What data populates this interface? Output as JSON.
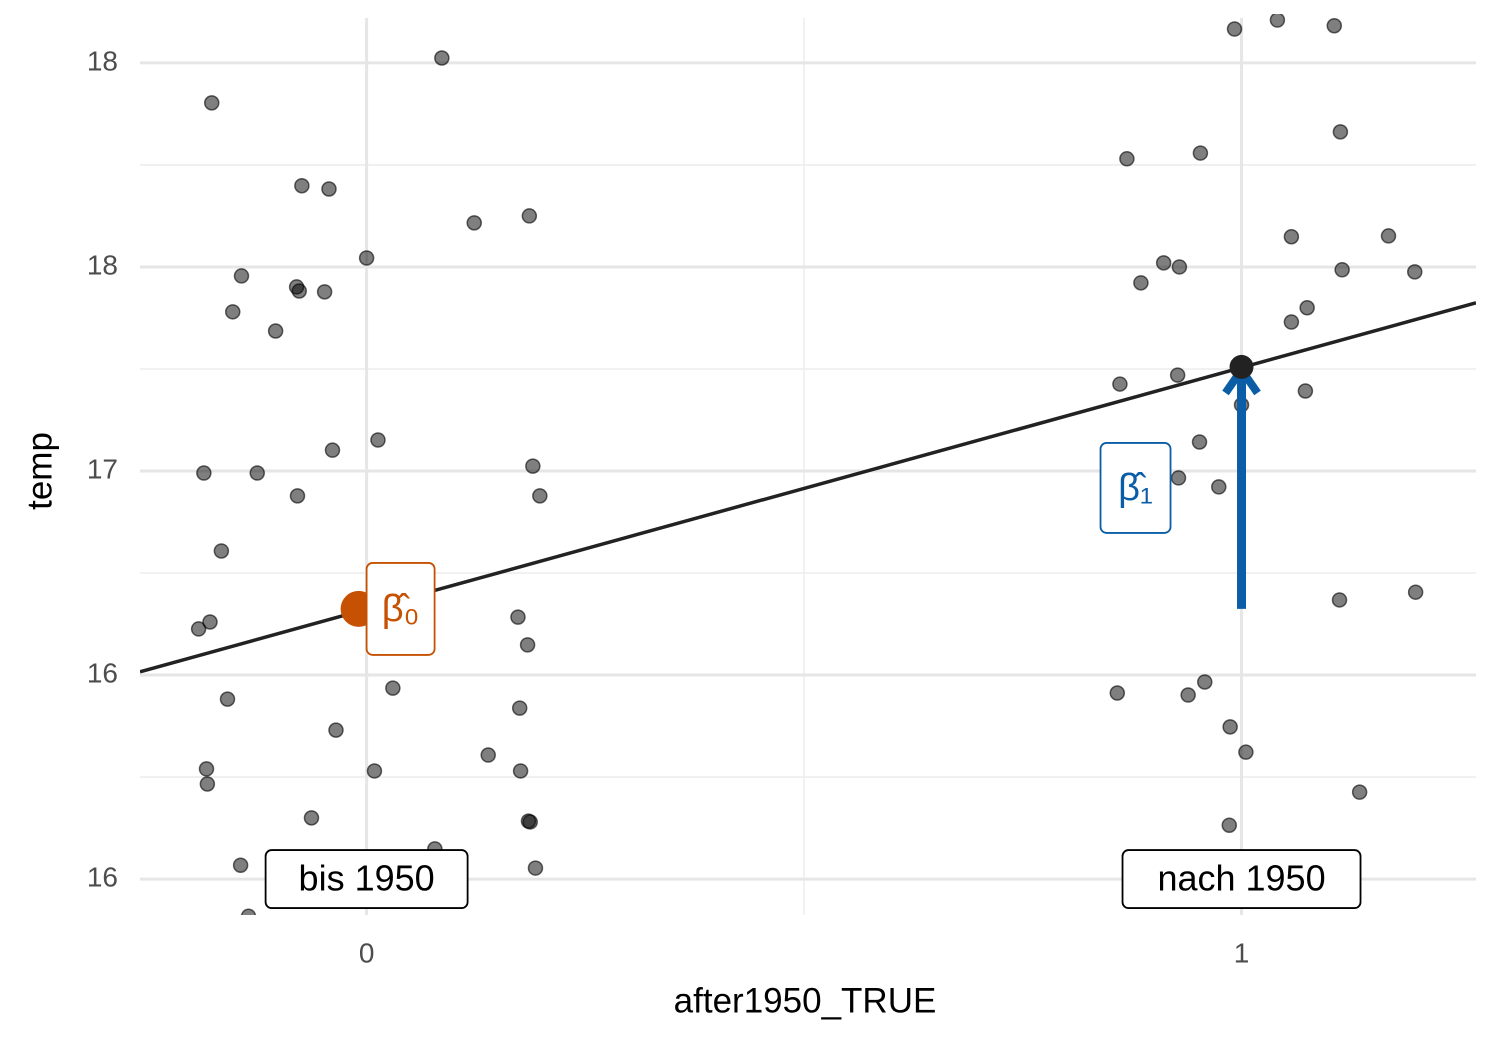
{
  "chart_data": {
    "type": "scatter",
    "x_label": "after1950_TRUE",
    "y_label": "temp",
    "xlim": [
      -0.259,
      1.268
    ],
    "ylim": [
      15.912,
      18.11
    ],
    "xticks": [
      0,
      1
    ],
    "yticks": [
      {
        "value": 18,
        "label": "18"
      },
      {
        "value": 17.5,
        "label": "18"
      },
      {
        "value": 17,
        "label": "17"
      },
      {
        "value": 16.5,
        "label": "16"
      },
      {
        "value": 16,
        "label": "16"
      }
    ],
    "grid": true,
    "point_color": "#000000",
    "x": [
      0.086,
      -0.177,
      -0.074,
      -0.043,
      0.123,
      0.186,
      0.0,
      -0.143,
      -0.08,
      -0.077,
      -0.048,
      -0.153,
      -0.104,
      0.013,
      -0.039,
      -0.186,
      -0.125,
      0.19,
      0.198,
      -0.079,
      -0.166,
      -0.179,
      -0.192,
      0.173,
      0.184,
      0.03,
      -0.159,
      -0.035,
      0.175,
      0.139,
      -0.183,
      0.009,
      0.176,
      -0.182,
      -0.063,
      0.185,
      0.187,
      0.078,
      -0.144,
      0.193,
      -0.135,
      0.992,
      1.041,
      1.106,
      1.113,
      0.869,
      0.953,
      1.057,
      1.168,
      0.911,
      0.929,
      1.115,
      1.198,
      0.885,
      1.075,
      1.057,
      0.861,
      0.927,
      1.073,
      1.0,
      0.952,
      0.928,
      0.974,
      1.112,
      1.199,
      0.858,
      0.939,
      0.958,
      0.987,
      1.005,
      1.135,
      0.986,
      1.147
    ],
    "values": [
      18.012,
      17.902,
      17.699,
      17.691,
      17.608,
      17.625,
      17.522,
      17.478,
      17.451,
      17.441,
      17.439,
      17.39,
      17.343,
      17.076,
      17.051,
      16.995,
      16.995,
      17.012,
      16.939,
      16.939,
      16.804,
      16.63,
      16.613,
      16.642,
      16.574,
      16.468,
      16.441,
      16.365,
      16.419,
      16.304,
      16.27,
      16.265,
      16.265,
      16.233,
      16.15,
      16.142,
      16.14,
      16.074,
      16.034,
      16.027,
      15.909,
      18.083,
      18.105,
      18.091,
      17.831,
      17.765,
      17.779,
      17.574,
      17.576,
      17.51,
      17.5,
      17.493,
      17.488,
      17.461,
      17.4,
      17.365,
      17.213,
      17.235,
      17.196,
      17.162,
      17.071,
      16.983,
      16.961,
      16.684,
      16.703,
      16.456,
      16.451,
      16.483,
      16.373,
      16.311,
      16.213,
      16.132,
      15.887
    ],
    "regression_line": {
      "color": "#222222",
      "x": [
        -0.259,
        1.268
      ],
      "values": [
        16.508,
        17.412
      ]
    },
    "intercept": {
      "x": 0,
      "value": 16.662,
      "label": "β̂₀",
      "color": "#c65102"
    },
    "fitted_after": {
      "x": 1,
      "value": 17.255,
      "label": "β̂₁",
      "color": "#0b5ea6"
    },
    "group_labels": [
      "bis 1950",
      "nach 1950"
    ]
  }
}
